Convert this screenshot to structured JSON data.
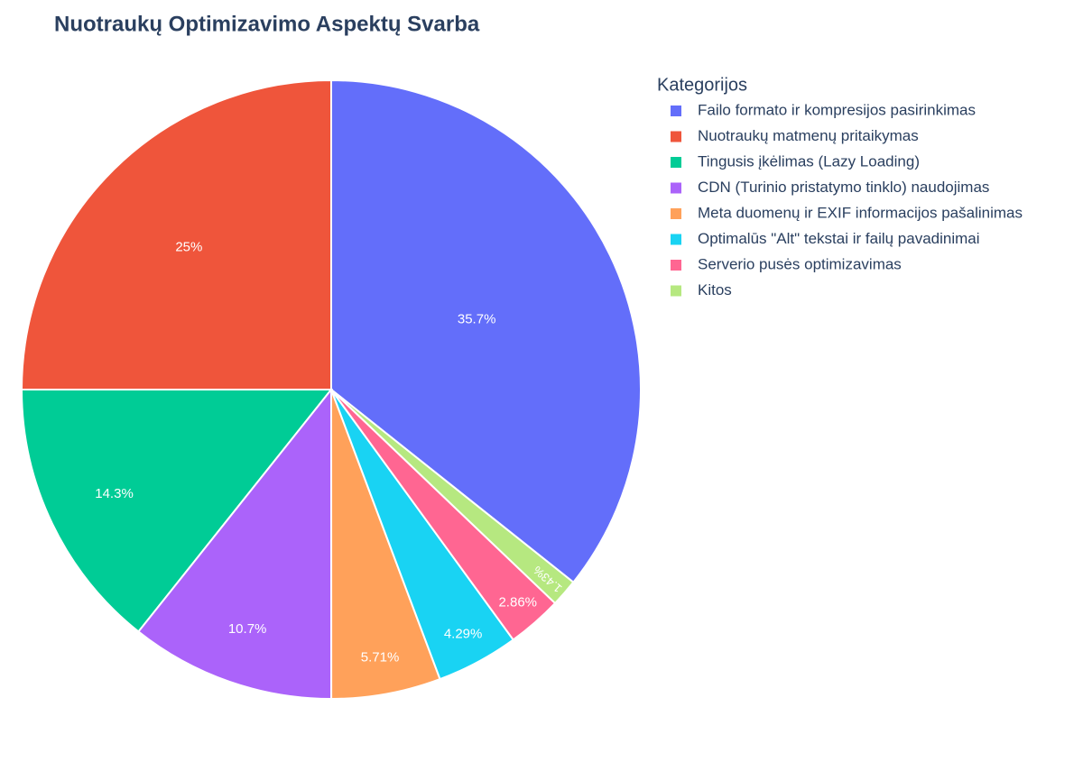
{
  "chart_data": {
    "type": "pie",
    "title": "Nuotraukų Optimizavimo Aspektų Svarba",
    "legend_title": "Kategorijos",
    "categories": [
      "Failo formato ir kompresijos pasirinkimas",
      "Nuotraukų matmenų pritaikymas",
      "Tingusis įkėlimas (Lazy Loading)",
      "CDN (Turinio pristatymo tinklo) naudojimas",
      "Meta duomenų ir EXIF informacijos pašalinimas",
      "Optimalūs \"Alt\" tekstai ir failų pavadinimai",
      "Serverio pusės optimizavimas",
      "Kitos"
    ],
    "values": [
      35.7,
      25,
      14.3,
      10.7,
      5.71,
      4.29,
      2.86,
      1.43
    ],
    "value_labels": [
      "35.7%",
      "25%",
      "14.3%",
      "10.7%",
      "5.71%",
      "4.29%",
      "2.86%",
      "1.43%"
    ],
    "colors": [
      "#636efa",
      "#ef553b",
      "#00cc96",
      "#ab63fa",
      "#ffa15a",
      "#19d3f3",
      "#ff6692",
      "#b6e880"
    ],
    "direction": "counterclockwise",
    "legend": "right"
  }
}
